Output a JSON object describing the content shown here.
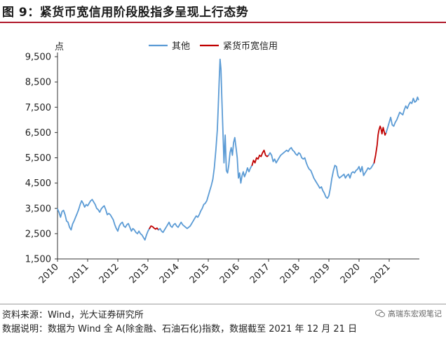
{
  "header": {
    "title": "图 9：紧货币宽信用阶段股指多呈现上行态势"
  },
  "footer": {
    "source": "资料来源：Wind，光大证券研究所",
    "note": "数据说明：数据为 Wind 全 A(除金融、石油石化)指数，数据截至 2021 年 12 月 21 日",
    "watermark": "高瑞东宏观笔记",
    "watermark_icon": "wechat-icon"
  },
  "chart_data": {
    "type": "line",
    "title": "",
    "xlabel": "",
    "ylabel": "点",
    "ylim": [
      1500,
      9500
    ],
    "yticks": [
      1500,
      2500,
      3500,
      4500,
      5500,
      6500,
      7500,
      8500,
      9500
    ],
    "ytick_labels": [
      "1,500",
      "2,500",
      "3,500",
      "4,500",
      "5,500",
      "6,500",
      "7,500",
      "8,500",
      "9,500"
    ],
    "xlim": [
      2010.0,
      2022.0
    ],
    "xticks": [
      2010,
      2011,
      2012,
      2013,
      2014,
      2015,
      2016,
      2017,
      2018,
      2019,
      2020,
      2021
    ],
    "xtick_labels": [
      "2010",
      "2011",
      "2012",
      "2013",
      "2014",
      "2015",
      "2016",
      "2017",
      "2018",
      "2019",
      "2020",
      "2021"
    ],
    "legend": {
      "placement": "top-center"
    },
    "grid": false,
    "series": [
      {
        "name": "其他",
        "color": "#5b9bd5",
        "points": [
          [
            2010.0,
            3480
          ],
          [
            2010.05,
            3350
          ],
          [
            2010.1,
            3150
          ],
          [
            2010.15,
            3380
          ],
          [
            2010.2,
            3420
          ],
          [
            2010.25,
            3250
          ],
          [
            2010.3,
            3000
          ],
          [
            2010.35,
            2950
          ],
          [
            2010.4,
            2750
          ],
          [
            2010.45,
            2650
          ],
          [
            2010.5,
            2880
          ],
          [
            2010.55,
            3000
          ],
          [
            2010.6,
            3150
          ],
          [
            2010.65,
            3300
          ],
          [
            2010.7,
            3450
          ],
          [
            2010.75,
            3650
          ],
          [
            2010.8,
            3800
          ],
          [
            2010.85,
            3700
          ],
          [
            2010.9,
            3550
          ],
          [
            2010.95,
            3650
          ],
          [
            2011.0,
            3600
          ],
          [
            2011.05,
            3700
          ],
          [
            2011.1,
            3800
          ],
          [
            2011.15,
            3850
          ],
          [
            2011.2,
            3750
          ],
          [
            2011.25,
            3650
          ],
          [
            2011.3,
            3500
          ],
          [
            2011.35,
            3450
          ],
          [
            2011.4,
            3350
          ],
          [
            2011.45,
            3480
          ],
          [
            2011.5,
            3550
          ],
          [
            2011.55,
            3600
          ],
          [
            2011.6,
            3450
          ],
          [
            2011.65,
            3250
          ],
          [
            2011.7,
            3300
          ],
          [
            2011.75,
            3250
          ],
          [
            2011.8,
            3150
          ],
          [
            2011.85,
            3050
          ],
          [
            2011.9,
            2850
          ],
          [
            2011.95,
            2700
          ],
          [
            2012.0,
            2600
          ],
          [
            2012.05,
            2800
          ],
          [
            2012.1,
            2900
          ],
          [
            2012.15,
            2950
          ],
          [
            2012.2,
            2800
          ],
          [
            2012.25,
            2750
          ],
          [
            2012.3,
            2850
          ],
          [
            2012.35,
            2900
          ],
          [
            2012.4,
            2750
          ],
          [
            2012.45,
            2600
          ],
          [
            2012.5,
            2700
          ],
          [
            2012.55,
            2650
          ],
          [
            2012.6,
            2550
          ],
          [
            2012.65,
            2500
          ],
          [
            2012.7,
            2600
          ],
          [
            2012.75,
            2500
          ],
          [
            2012.8,
            2450
          ],
          [
            2012.85,
            2350
          ],
          [
            2012.9,
            2250
          ],
          [
            2012.95,
            2450
          ],
          [
            2013.0,
            2600
          ],
          [
            2013.05,
            2700
          ]
        ]
      },
      {
        "name": "紧货币宽信用",
        "color": "#c00000",
        "points": [
          [
            2013.05,
            2700
          ],
          [
            2013.1,
            2800
          ],
          [
            2013.15,
            2780
          ],
          [
            2013.2,
            2720
          ],
          [
            2013.25,
            2680
          ],
          [
            2013.3,
            2720
          ],
          [
            2013.35,
            2650
          ]
        ]
      },
      {
        "name": "其他",
        "color": "#5b9bd5",
        "points": [
          [
            2013.35,
            2650
          ],
          [
            2013.4,
            2700
          ],
          [
            2013.45,
            2600
          ],
          [
            2013.5,
            2550
          ],
          [
            2013.55,
            2650
          ],
          [
            2013.6,
            2750
          ],
          [
            2013.65,
            2850
          ],
          [
            2013.7,
            2950
          ],
          [
            2013.75,
            2800
          ],
          [
            2013.8,
            2750
          ],
          [
            2013.85,
            2850
          ],
          [
            2013.9,
            2900
          ],
          [
            2013.95,
            2800
          ],
          [
            2014.0,
            2750
          ],
          [
            2014.05,
            2850
          ],
          [
            2014.1,
            2950
          ],
          [
            2014.15,
            2850
          ],
          [
            2014.2,
            2800
          ],
          [
            2014.25,
            2750
          ],
          [
            2014.3,
            2700
          ],
          [
            2014.35,
            2750
          ],
          [
            2014.4,
            2800
          ],
          [
            2014.45,
            2900
          ],
          [
            2014.5,
            3000
          ],
          [
            2014.55,
            3100
          ],
          [
            2014.6,
            3200
          ],
          [
            2014.65,
            3150
          ],
          [
            2014.7,
            3250
          ],
          [
            2014.75,
            3400
          ],
          [
            2014.8,
            3500
          ],
          [
            2014.85,
            3650
          ],
          [
            2014.9,
            3700
          ],
          [
            2014.95,
            3800
          ],
          [
            2015.0,
            4000
          ],
          [
            2015.05,
            4200
          ],
          [
            2015.1,
            4400
          ],
          [
            2015.15,
            4650
          ],
          [
            2015.2,
            5100
          ],
          [
            2015.25,
            5800
          ],
          [
            2015.3,
            6600
          ],
          [
            2015.33,
            7500
          ],
          [
            2015.36,
            8500
          ],
          [
            2015.39,
            9400
          ],
          [
            2015.42,
            9000
          ],
          [
            2015.45,
            7800
          ],
          [
            2015.48,
            6800
          ],
          [
            2015.52,
            5300
          ],
          [
            2015.56,
            6400
          ],
          [
            2015.6,
            5000
          ],
          [
            2015.64,
            4900
          ],
          [
            2015.68,
            5200
          ],
          [
            2015.72,
            5700
          ],
          [
            2015.76,
            5900
          ],
          [
            2015.8,
            5600
          ],
          [
            2015.84,
            6100
          ],
          [
            2015.88,
            6300
          ],
          [
            2015.92,
            5900
          ],
          [
            2015.96,
            5500
          ],
          [
            2016.0,
            4700
          ],
          [
            2016.04,
            4900
          ],
          [
            2016.08,
            4500
          ],
          [
            2016.12,
            4800
          ],
          [
            2016.16,
            4950
          ],
          [
            2016.2,
            4750
          ],
          [
            2016.25,
            4900
          ],
          [
            2016.3,
            5100
          ],
          [
            2016.35,
            4950
          ],
          [
            2016.4,
            5100
          ],
          [
            2016.45,
            5200
          ]
        ]
      },
      {
        "name": "紧货币宽信用",
        "color": "#c00000",
        "points": [
          [
            2016.45,
            5200
          ],
          [
            2016.5,
            5400
          ],
          [
            2016.55,
            5300
          ],
          [
            2016.6,
            5500
          ],
          [
            2016.65,
            5450
          ],
          [
            2016.7,
            5600
          ],
          [
            2016.75,
            5550
          ],
          [
            2016.8,
            5700
          ],
          [
            2016.85,
            5800
          ],
          [
            2016.9,
            5600
          ],
          [
            2016.95,
            5550
          ],
          [
            2017.0,
            5600
          ]
        ]
      },
      {
        "name": "其他",
        "color": "#5b9bd5",
        "points": [
          [
            2017.0,
            5600
          ],
          [
            2017.05,
            5700
          ],
          [
            2017.1,
            5600
          ],
          [
            2017.15,
            5350
          ],
          [
            2017.2,
            5450
          ],
          [
            2017.25,
            5300
          ],
          [
            2017.3,
            5400
          ],
          [
            2017.35,
            5500
          ],
          [
            2017.4,
            5600
          ],
          [
            2017.45,
            5650
          ],
          [
            2017.5,
            5700
          ],
          [
            2017.55,
            5750
          ],
          [
            2017.6,
            5800
          ],
          [
            2017.65,
            5750
          ],
          [
            2017.7,
            5850
          ],
          [
            2017.75,
            5900
          ],
          [
            2017.8,
            5800
          ],
          [
            2017.85,
            5750
          ],
          [
            2017.9,
            5650
          ],
          [
            2017.95,
            5600
          ],
          [
            2018.0,
            5700
          ],
          [
            2018.05,
            5650
          ],
          [
            2018.1,
            5500
          ],
          [
            2018.15,
            5450
          ],
          [
            2018.2,
            5500
          ],
          [
            2018.25,
            5300
          ],
          [
            2018.3,
            5150
          ],
          [
            2018.35,
            5050
          ],
          [
            2018.4,
            5000
          ],
          [
            2018.45,
            4850
          ],
          [
            2018.5,
            4700
          ],
          [
            2018.55,
            4600
          ],
          [
            2018.6,
            4500
          ],
          [
            2018.65,
            4400
          ],
          [
            2018.7,
            4300
          ],
          [
            2018.75,
            4350
          ],
          [
            2018.8,
            4200
          ],
          [
            2018.85,
            4100
          ],
          [
            2018.9,
            3950
          ],
          [
            2018.95,
            3900
          ],
          [
            2019.0,
            4000
          ],
          [
            2019.05,
            4300
          ],
          [
            2019.1,
            4700
          ],
          [
            2019.15,
            5000
          ],
          [
            2019.2,
            5200
          ],
          [
            2019.25,
            5150
          ],
          [
            2019.3,
            4800
          ],
          [
            2019.35,
            4700
          ],
          [
            2019.4,
            4750
          ],
          [
            2019.45,
            4800
          ],
          [
            2019.5,
            4850
          ],
          [
            2019.55,
            4700
          ],
          [
            2019.6,
            4800
          ],
          [
            2019.65,
            4850
          ],
          [
            2019.7,
            4700
          ],
          [
            2019.75,
            4900
          ],
          [
            2019.8,
            4950
          ],
          [
            2019.85,
            4900
          ],
          [
            2019.9,
            5000
          ],
          [
            2019.95,
            5050
          ],
          [
            2020.0,
            5150
          ],
          [
            2020.05,
            4950
          ],
          [
            2020.1,
            5150
          ],
          [
            2020.15,
            4800
          ],
          [
            2020.2,
            4900
          ],
          [
            2020.25,
            5000
          ],
          [
            2020.3,
            5100
          ],
          [
            2020.35,
            5050
          ],
          [
            2020.4,
            5100
          ],
          [
            2020.45,
            5200
          ],
          [
            2020.5,
            5300
          ]
        ]
      },
      {
        "name": "紧货币宽信用",
        "color": "#c00000",
        "points": [
          [
            2020.5,
            5300
          ],
          [
            2020.55,
            5600
          ],
          [
            2020.6,
            6000
          ],
          [
            2020.63,
            6400
          ],
          [
            2020.66,
            6600
          ],
          [
            2020.7,
            6750
          ],
          [
            2020.73,
            6650
          ],
          [
            2020.76,
            6450
          ],
          [
            2020.8,
            6700
          ],
          [
            2020.83,
            6550
          ],
          [
            2020.86,
            6400
          ],
          [
            2020.9,
            6500
          ]
        ]
      },
      {
        "name": "其他",
        "color": "#5b9bd5",
        "points": [
          [
            2020.9,
            6500
          ],
          [
            2020.95,
            6700
          ],
          [
            2021.0,
            6900
          ],
          [
            2021.05,
            7100
          ],
          [
            2021.1,
            6800
          ],
          [
            2021.15,
            6750
          ],
          [
            2021.2,
            6900
          ],
          [
            2021.25,
            7000
          ],
          [
            2021.3,
            7150
          ],
          [
            2021.35,
            7300
          ],
          [
            2021.4,
            7250
          ],
          [
            2021.45,
            7200
          ],
          [
            2021.5,
            7400
          ],
          [
            2021.55,
            7550
          ],
          [
            2021.6,
            7450
          ],
          [
            2021.65,
            7600
          ],
          [
            2021.7,
            7700
          ],
          [
            2021.75,
            7650
          ],
          [
            2021.8,
            7850
          ],
          [
            2021.85,
            7700
          ],
          [
            2021.9,
            7750
          ],
          [
            2021.94,
            7900
          ],
          [
            2021.97,
            7800
          ]
        ]
      }
    ]
  }
}
